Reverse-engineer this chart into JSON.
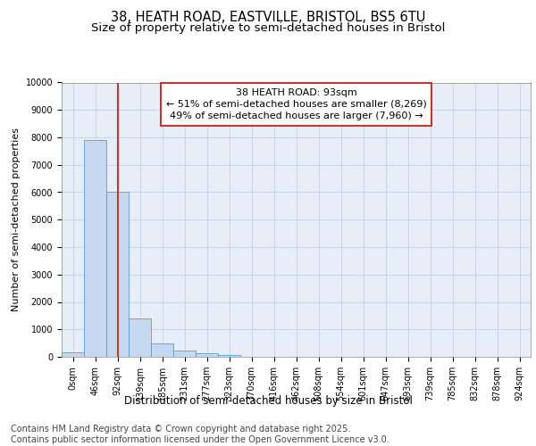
{
  "title_line1": "38, HEATH ROAD, EASTVILLE, BRISTOL, BS5 6TU",
  "title_line2": "Size of property relative to semi-detached houses in Bristol",
  "xlabel": "Distribution of semi-detached houses by size in Bristol",
  "ylabel": "Number of semi-detached properties",
  "bar_values": [
    150,
    7900,
    6000,
    1400,
    500,
    220,
    130,
    60,
    0,
    0,
    0,
    0,
    0,
    0,
    0,
    0,
    0,
    0,
    0,
    0
  ],
  "categories": [
    "0sqm",
    "46sqm",
    "92sqm",
    "139sqm",
    "185sqm",
    "231sqm",
    "277sqm",
    "323sqm",
    "370sqm",
    "416sqm",
    "462sqm",
    "508sqm",
    "554sqm",
    "601sqm",
    "647sqm",
    "693sqm",
    "739sqm",
    "785sqm",
    "832sqm",
    "878sqm",
    "924sqm"
  ],
  "bar_color": "#c5d8ef",
  "bar_edge_color": "#5b9bd5",
  "vline_x": 2.0,
  "vline_color": "#c0392b",
  "annotation_text": "38 HEATH ROAD: 93sqm\n← 51% of semi-detached houses are smaller (8,269)\n49% of semi-detached houses are larger (7,960) →",
  "annotation_box_color": "white",
  "annotation_box_edge_color": "#c0392b",
  "ylim": [
    0,
    10000
  ],
  "yticks": [
    0,
    1000,
    2000,
    3000,
    4000,
    5000,
    6000,
    7000,
    8000,
    9000,
    10000
  ],
  "grid_color": "#c8d4e8",
  "background_color": "#e8eef8",
  "footer_text": "Contains HM Land Registry data © Crown copyright and database right 2025.\nContains public sector information licensed under the Open Government Licence v3.0.",
  "title_fontsize": 10.5,
  "subtitle_fontsize": 9.5,
  "annotation_fontsize": 8,
  "footer_fontsize": 7,
  "tick_fontsize": 7,
  "ylabel_fontsize": 8,
  "xlabel_fontsize": 8.5
}
